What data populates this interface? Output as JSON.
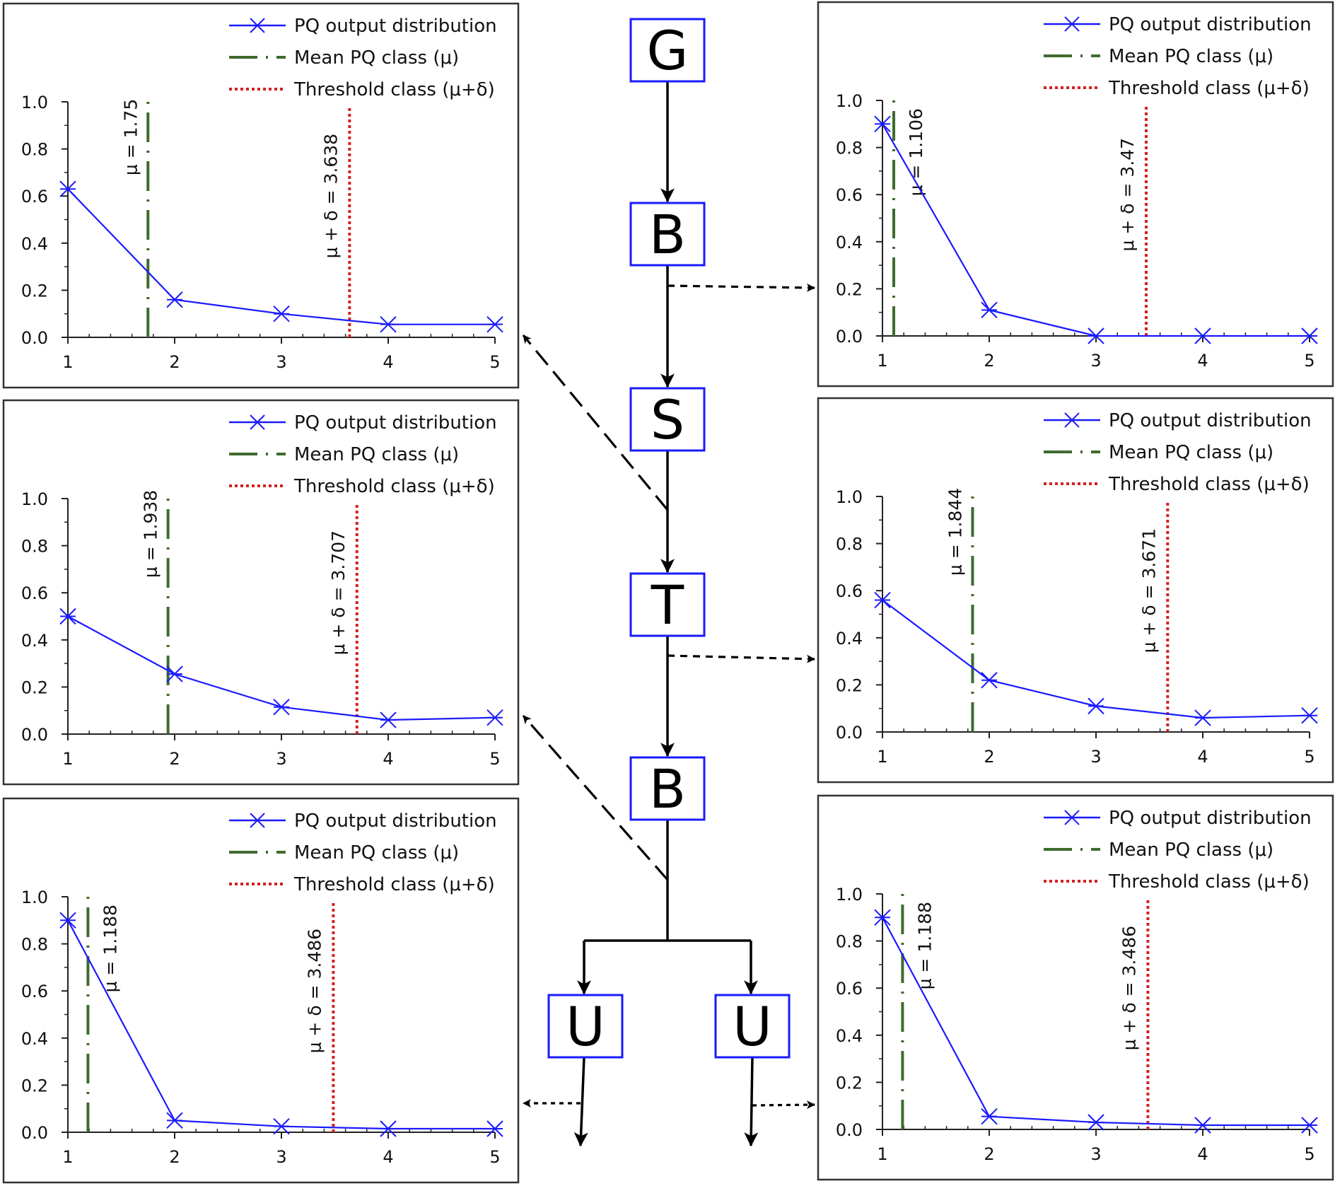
{
  "legend": {
    "distribution": "PQ output distribution",
    "mean": "Mean PQ class (μ)",
    "threshold": "Threshold class (μ+δ)"
  },
  "colors": {
    "distribution": "#1a1aff",
    "mean": "#3e6b2e",
    "threshold": "#d42020",
    "frame": "#333333"
  },
  "flow": {
    "nodes": [
      "G",
      "B",
      "S",
      "T",
      "B",
      "U",
      "U"
    ]
  },
  "chart_data": [
    {
      "type": "line",
      "x": [
        1,
        2,
        3,
        4,
        5
      ],
      "series": [
        {
          "name": "PQ output distribution",
          "values": [
            0.63,
            0.16,
            0.1,
            0.055,
            0.055
          ]
        }
      ],
      "mean": 1.75,
      "threshold": 3.638,
      "mean_label": "μ = 1.75",
      "threshold_label": "μ + δ = 3.638",
      "xticks": [
        "1",
        "2",
        "3",
        "4",
        "5"
      ],
      "yticks": [
        "0.0",
        "0.2",
        "0.4",
        "0.6",
        "0.8",
        "1.0"
      ],
      "xlim": [
        1,
        5
      ],
      "ylim": [
        0,
        1.0
      ],
      "legend_position": "top-right",
      "grid": false
    },
    {
      "type": "line",
      "x": [
        1,
        2,
        3,
        4,
        5
      ],
      "series": [
        {
          "name": "PQ output distribution",
          "values": [
            0.9,
            0.11,
            0.0,
            0.0,
            0.0
          ]
        }
      ],
      "mean": 1.106,
      "threshold": 3.47,
      "mean_label": "μ = 1.106",
      "threshold_label": "μ + δ = 3.47",
      "xticks": [
        "1",
        "2",
        "3",
        "4",
        "5"
      ],
      "yticks": [
        "0.0",
        "0.2",
        "0.4",
        "0.6",
        "0.8",
        "1.0"
      ],
      "xlim": [
        1,
        5
      ],
      "ylim": [
        0,
        1.0
      ],
      "legend_position": "top-right",
      "grid": false
    },
    {
      "type": "line",
      "x": [
        1,
        2,
        3,
        4,
        5
      ],
      "series": [
        {
          "name": "PQ output distribution",
          "values": [
            0.5,
            0.255,
            0.115,
            0.06,
            0.07
          ]
        }
      ],
      "mean": 1.938,
      "threshold": 3.707,
      "mean_label": "μ = 1.938",
      "threshold_label": "μ + δ = 3.707",
      "xticks": [
        "1",
        "2",
        "3",
        "4",
        "5"
      ],
      "yticks": [
        "0.0",
        "0.2",
        "0.4",
        "0.6",
        "0.8",
        "1.0"
      ],
      "xlim": [
        1,
        5
      ],
      "ylim": [
        0,
        1.0
      ],
      "legend_position": "top-right",
      "grid": false
    },
    {
      "type": "line",
      "x": [
        1,
        2,
        3,
        4,
        5
      ],
      "series": [
        {
          "name": "PQ output distribution",
          "values": [
            0.56,
            0.22,
            0.11,
            0.06,
            0.07
          ]
        }
      ],
      "mean": 1.844,
      "threshold": 3.671,
      "mean_label": "μ = 1.844",
      "threshold_label": "μ + δ = 3.671",
      "xticks": [
        "1",
        "2",
        "3",
        "4",
        "5"
      ],
      "yticks": [
        "0.0",
        "0.2",
        "0.4",
        "0.6",
        "0.8",
        "1.0"
      ],
      "xlim": [
        1,
        5
      ],
      "ylim": [
        0,
        1.0
      ],
      "legend_position": "top-right",
      "grid": false
    },
    {
      "type": "line",
      "x": [
        1,
        2,
        3,
        4,
        5
      ],
      "series": [
        {
          "name": "PQ output distribution",
          "values": [
            0.9,
            0.05,
            0.025,
            0.015,
            0.015
          ]
        }
      ],
      "mean": 1.188,
      "threshold": 3.486,
      "mean_label": "μ = 1.188",
      "threshold_label": "μ + δ = 3.486",
      "xticks": [
        "1",
        "2",
        "3",
        "4",
        "5"
      ],
      "yticks": [
        "0.0",
        "0.2",
        "0.4",
        "0.6",
        "0.8",
        "1.0"
      ],
      "xlim": [
        1,
        5
      ],
      "ylim": [
        0,
        1.0
      ],
      "legend_position": "top-right",
      "grid": false
    },
    {
      "type": "line",
      "x": [
        1,
        2,
        3,
        4,
        5
      ],
      "series": [
        {
          "name": "PQ output distribution",
          "values": [
            0.9,
            0.055,
            0.03,
            0.018,
            0.018
          ]
        }
      ],
      "mean": 1.188,
      "threshold": 3.486,
      "mean_label": "μ = 1.188",
      "threshold_label": "μ + δ = 3.486",
      "xticks": [
        "1",
        "2",
        "3",
        "4",
        "5"
      ],
      "yticks": [
        "0.0",
        "0.2",
        "0.4",
        "0.6",
        "0.8",
        "1.0"
      ],
      "xlim": [
        1,
        5
      ],
      "ylim": [
        0,
        1.0
      ],
      "legend_position": "top-right",
      "grid": false
    }
  ]
}
